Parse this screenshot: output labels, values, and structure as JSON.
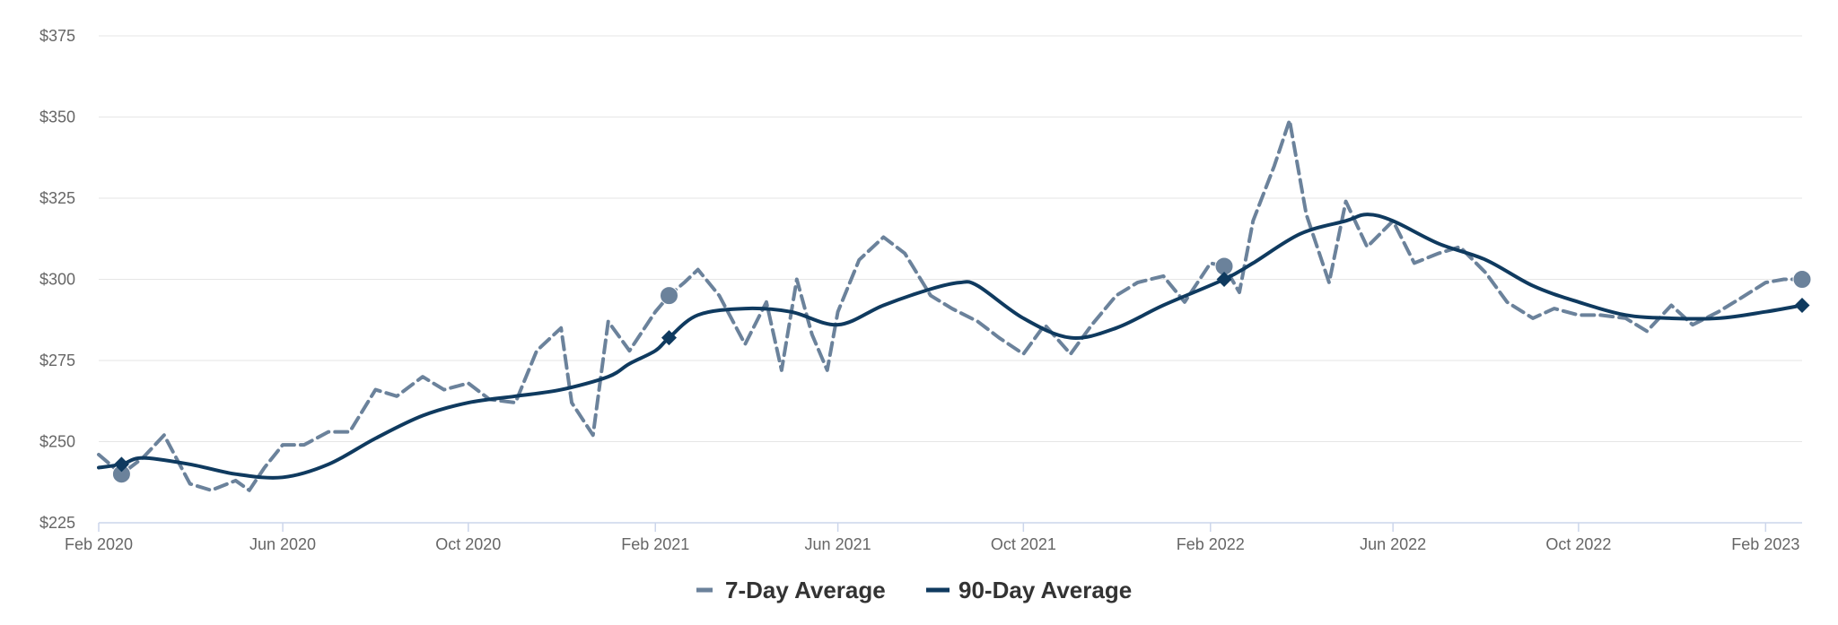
{
  "chart_data": {
    "type": "line",
    "title": "",
    "xlabel": "",
    "ylabel": "",
    "ylim": [
      225,
      375
    ],
    "xlim": [
      "2020-02-01",
      "2023-02-25"
    ],
    "y_ticks": [
      225,
      250,
      275,
      300,
      325,
      350,
      375
    ],
    "y_tick_labels": [
      "$225",
      "$250",
      "$275",
      "$300",
      "$325",
      "$350",
      "$375"
    ],
    "x_ticks": [
      "2020-02-01",
      "2020-06-01",
      "2020-10-01",
      "2021-02-01",
      "2021-06-01",
      "2021-10-01",
      "2022-02-01",
      "2022-06-01",
      "2022-10-01",
      "2023-02-01"
    ],
    "x_tick_labels": [
      "Feb 2020",
      "Jun 2020",
      "Oct 2020",
      "Feb 2021",
      "Jun 2021",
      "Oct 2021",
      "Feb 2022",
      "Jun 2022",
      "Oct 2022",
      "Feb 2023"
    ],
    "grid": "horizontal",
    "legend_position": "bottom-center",
    "series": [
      {
        "name": "7-Day Average",
        "color": "#6b829b",
        "style": "dashed",
        "marker": "circle",
        "points": [
          [
            "2020-02-01",
            246
          ],
          [
            "2020-02-16",
            240
          ],
          [
            "2020-03-01",
            245
          ],
          [
            "2020-03-15",
            252
          ],
          [
            "2020-04-01",
            237
          ],
          [
            "2020-04-15",
            235
          ],
          [
            "2020-05-01",
            238
          ],
          [
            "2020-05-10",
            235
          ],
          [
            "2020-05-20",
            242
          ],
          [
            "2020-06-01",
            249
          ],
          [
            "2020-06-15",
            249
          ],
          [
            "2020-07-01",
            253
          ],
          [
            "2020-07-15",
            253
          ],
          [
            "2020-08-01",
            266
          ],
          [
            "2020-08-15",
            264
          ],
          [
            "2020-09-01",
            270
          ],
          [
            "2020-09-15",
            266
          ],
          [
            "2020-10-01",
            268
          ],
          [
            "2020-10-15",
            263
          ],
          [
            "2020-11-01",
            262
          ],
          [
            "2020-11-15",
            278
          ],
          [
            "2020-12-01",
            285
          ],
          [
            "2020-12-08",
            262
          ],
          [
            "2020-12-22",
            252
          ],
          [
            "2021-01-01",
            287
          ],
          [
            "2021-01-15",
            278
          ],
          [
            "2021-02-01",
            290
          ],
          [
            "2021-02-10",
            295
          ],
          [
            "2021-02-20",
            299
          ],
          [
            "2021-03-01",
            303
          ],
          [
            "2021-03-15",
            295
          ],
          [
            "2021-04-01",
            280
          ],
          [
            "2021-04-15",
            293
          ],
          [
            "2021-04-25",
            272
          ],
          [
            "2021-05-05",
            300
          ],
          [
            "2021-05-15",
            283
          ],
          [
            "2021-05-25",
            272
          ],
          [
            "2021-06-01",
            290
          ],
          [
            "2021-06-15",
            306
          ],
          [
            "2021-07-01",
            313
          ],
          [
            "2021-07-15",
            308
          ],
          [
            "2021-08-01",
            295
          ],
          [
            "2021-08-15",
            291
          ],
          [
            "2021-09-01",
            287
          ],
          [
            "2021-09-15",
            282
          ],
          [
            "2021-10-01",
            277
          ],
          [
            "2021-10-15",
            286
          ],
          [
            "2021-11-01",
            277
          ],
          [
            "2021-11-15",
            286
          ],
          [
            "2021-12-01",
            295
          ],
          [
            "2021-12-15",
            299
          ],
          [
            "2022-01-01",
            301
          ],
          [
            "2022-01-15",
            293
          ],
          [
            "2022-02-01",
            305
          ],
          [
            "2022-02-10",
            304
          ],
          [
            "2022-02-20",
            296
          ],
          [
            "2022-03-01",
            318
          ],
          [
            "2022-03-15",
            335
          ],
          [
            "2022-03-25",
            349
          ],
          [
            "2022-04-05",
            320
          ],
          [
            "2022-04-20",
            299
          ],
          [
            "2022-05-01",
            324
          ],
          [
            "2022-05-15",
            310
          ],
          [
            "2022-06-01",
            318
          ],
          [
            "2022-06-15",
            305
          ],
          [
            "2022-07-01",
            308
          ],
          [
            "2022-07-15",
            310
          ],
          [
            "2022-08-01",
            302
          ],
          [
            "2022-08-15",
            293
          ],
          [
            "2022-09-01",
            288
          ],
          [
            "2022-09-15",
            291
          ],
          [
            "2022-10-01",
            289
          ],
          [
            "2022-10-15",
            289
          ],
          [
            "2022-11-01",
            288
          ],
          [
            "2022-11-15",
            284
          ],
          [
            "2022-12-01",
            292
          ],
          [
            "2022-12-15",
            286
          ],
          [
            "2023-01-01",
            290
          ],
          [
            "2023-01-15",
            294
          ],
          [
            "2023-02-01",
            299
          ],
          [
            "2023-02-13",
            300
          ],
          [
            "2023-02-25",
            300
          ]
        ],
        "highlighted": [
          [
            "2020-02-16",
            240
          ],
          [
            "2021-02-10",
            295
          ],
          [
            "2022-02-10",
            304
          ],
          [
            "2023-02-25",
            300
          ]
        ]
      },
      {
        "name": "90-Day Average",
        "color": "#0f3a5f",
        "style": "solid",
        "marker": "diamond",
        "points": [
          [
            "2020-02-01",
            242
          ],
          [
            "2020-02-16",
            243
          ],
          [
            "2020-03-01",
            245
          ],
          [
            "2020-04-01",
            243
          ],
          [
            "2020-05-01",
            240
          ],
          [
            "2020-06-01",
            239
          ],
          [
            "2020-07-01",
            243
          ],
          [
            "2020-08-01",
            251
          ],
          [
            "2020-09-01",
            258
          ],
          [
            "2020-10-01",
            262
          ],
          [
            "2020-11-01",
            264
          ],
          [
            "2020-12-01",
            266
          ],
          [
            "2021-01-01",
            270
          ],
          [
            "2021-01-15",
            274
          ],
          [
            "2021-02-01",
            278
          ],
          [
            "2021-02-10",
            282
          ],
          [
            "2021-03-01",
            289
          ],
          [
            "2021-04-01",
            291
          ],
          [
            "2021-05-01",
            290
          ],
          [
            "2021-06-01",
            286
          ],
          [
            "2021-07-01",
            292
          ],
          [
            "2021-08-01",
            297
          ],
          [
            "2021-08-20",
            299
          ],
          [
            "2021-09-01",
            298
          ],
          [
            "2021-10-01",
            288
          ],
          [
            "2021-11-01",
            282
          ],
          [
            "2021-12-01",
            285
          ],
          [
            "2022-01-01",
            292
          ],
          [
            "2022-02-10",
            300
          ],
          [
            "2022-03-01",
            305
          ],
          [
            "2022-04-01",
            314
          ],
          [
            "2022-05-01",
            318
          ],
          [
            "2022-05-15",
            320
          ],
          [
            "2022-06-01",
            318
          ],
          [
            "2022-07-01",
            311
          ],
          [
            "2022-08-01",
            306
          ],
          [
            "2022-09-01",
            298
          ],
          [
            "2022-10-01",
            293
          ],
          [
            "2022-11-01",
            289
          ],
          [
            "2022-12-01",
            288
          ],
          [
            "2023-01-01",
            288
          ],
          [
            "2023-02-01",
            290
          ],
          [
            "2023-02-25",
            292
          ]
        ],
        "highlighted": [
          [
            "2020-02-16",
            243
          ],
          [
            "2021-02-10",
            282
          ],
          [
            "2022-02-10",
            300
          ],
          [
            "2023-02-25",
            292
          ]
        ]
      }
    ]
  }
}
